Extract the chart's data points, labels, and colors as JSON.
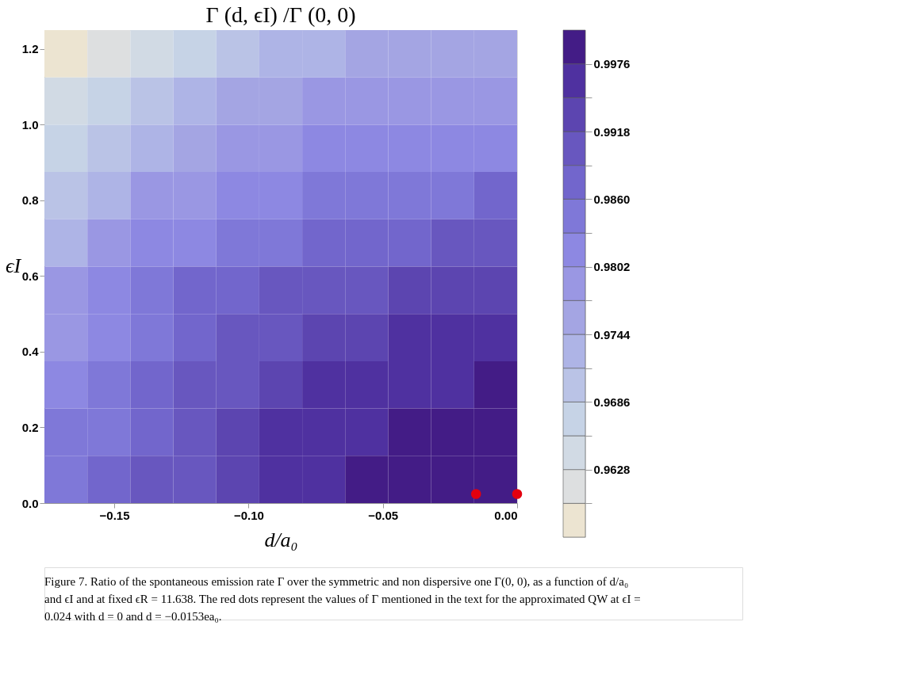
{
  "chart_data": {
    "type": "heatmap",
    "title": "Γ (d, ϵI) /Γ (0, 0)",
    "xlabel": "d/a₀",
    "ylabel": "ϵI",
    "x": [
      -0.168,
      -0.152,
      -0.136,
      -0.12,
      -0.104,
      -0.088,
      -0.072,
      -0.056,
      -0.04,
      -0.024,
      -0.008
    ],
    "y": [
      1.1875,
      1.0625,
      0.9375,
      0.8125,
      0.6875,
      0.5625,
      0.4375,
      0.3125,
      0.1875,
      0.0625
    ],
    "cells": [
      [
        0.9585,
        0.9614,
        0.9643,
        0.9672,
        0.9701,
        0.973,
        0.973,
        0.9759,
        0.9759,
        0.9759,
        0.9759
      ],
      [
        0.9643,
        0.9672,
        0.9701,
        0.973,
        0.9759,
        0.9759,
        0.9788,
        0.9788,
        0.9788,
        0.9788,
        0.9788
      ],
      [
        0.9672,
        0.9701,
        0.973,
        0.9759,
        0.9788,
        0.9788,
        0.9817,
        0.9817,
        0.9817,
        0.9817,
        0.9817
      ],
      [
        0.9701,
        0.973,
        0.9788,
        0.9788,
        0.9817,
        0.9817,
        0.9846,
        0.9846,
        0.9846,
        0.9846,
        0.9875
      ],
      [
        0.973,
        0.9788,
        0.9817,
        0.9817,
        0.9846,
        0.9846,
        0.9875,
        0.9875,
        0.9875,
        0.9904,
        0.9904
      ],
      [
        0.9788,
        0.9817,
        0.9846,
        0.9875,
        0.9875,
        0.9904,
        0.9904,
        0.9904,
        0.9933,
        0.9933,
        0.9933
      ],
      [
        0.9788,
        0.9817,
        0.9846,
        0.9875,
        0.9904,
        0.9904,
        0.9933,
        0.9933,
        0.9962,
        0.9962,
        0.9962
      ],
      [
        0.9817,
        0.9846,
        0.9875,
        0.9904,
        0.9904,
        0.9933,
        0.9962,
        0.9962,
        0.9962,
        0.9962,
        0.9991
      ],
      [
        0.9846,
        0.9846,
        0.9875,
        0.9904,
        0.9933,
        0.9962,
        0.9962,
        0.9962,
        0.9991,
        0.9991,
        0.9991
      ],
      [
        0.9846,
        0.9875,
        0.9904,
        0.9904,
        0.9933,
        0.9962,
        0.9962,
        0.9991,
        0.9991,
        0.9991,
        0.9991
      ]
    ],
    "colors": [
      "#ece4d1",
      "#dddfe0",
      "#d1dae4",
      "#c6d3e6",
      "#bac3e6",
      "#aeb4e6",
      "#a4a5e3",
      "#9a97e3",
      "#8d88e2",
      "#7f78d8",
      "#7266cc",
      "#6857bf",
      "#5c45b0",
      "#4f31a0",
      "#431c86"
    ],
    "clim": [
      0.957,
      1.0005
    ],
    "cticks": [
      0.9628,
      0.9686,
      0.9744,
      0.9802,
      {
        "value": 0.986,
        "label": "0.9860"
      },
      0.9918,
      0.9976
    ],
    "xlim": [
      -0.176,
      0
    ],
    "xticks": [
      {
        "value": -0.15,
        "label": "−0.15"
      },
      {
        "value": -0.1,
        "label": "−0.10"
      },
      {
        "value": -0.05,
        "label": "−0.05"
      },
      {
        "value": 0,
        "label": "0.00"
      }
    ],
    "ylim": [
      0,
      1.25
    ],
    "yticks": [
      {
        "value": 0,
        "label": "0.0"
      },
      {
        "value": 0.2,
        "label": "0.2"
      },
      {
        "value": 0.4,
        "label": "0.4"
      },
      {
        "value": 0.6,
        "label": "0.6"
      },
      {
        "value": 0.8,
        "label": "0.8"
      },
      {
        "value": 1.0,
        "label": "1.0"
      },
      {
        "value": 1.2,
        "label": "1.2"
      }
    ],
    "series": [
      {
        "type": "scatter",
        "color": "#e3000f",
        "x": [
          -0.0153,
          0
        ],
        "values": [
          0.024,
          0.024
        ]
      }
    ],
    "grid": false,
    "annotations": [
      "Figure 7.  Ratio of the spontaneous emission rate Γ over the symmetric and non dispersive one Γ(0, 0), as a function of d/a₀ and ϵI and at fixed ϵR = 11.638. The red dots represent the values of Γ mentioned in the text for the approximated QW at ϵI = 0.024 with d = 0 and d = −0.0153ea₀."
    ]
  }
}
